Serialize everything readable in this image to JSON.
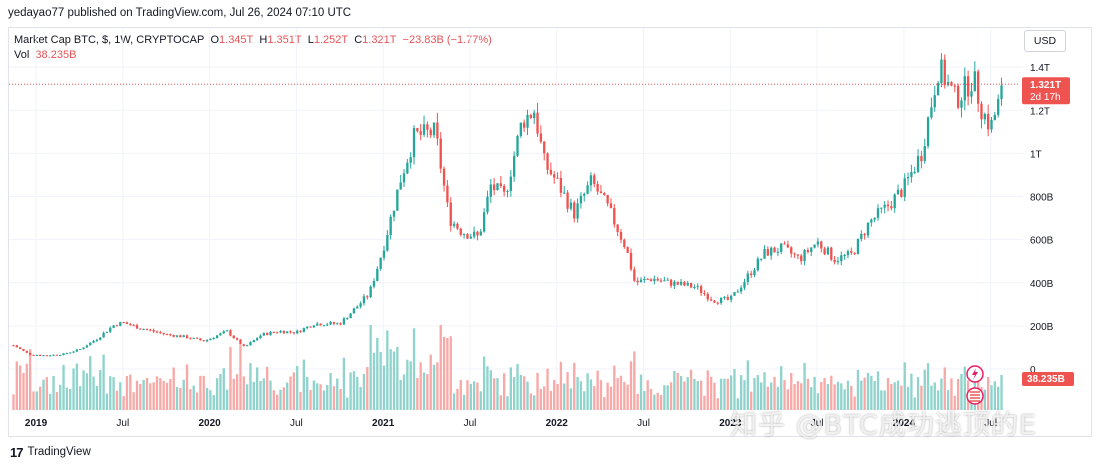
{
  "header": {
    "publisher": "yedayao77 published on TradingView.com, Jul 26, 2024 07:10 UTC"
  },
  "legend": {
    "symbol": "Market Cap BTC, $, 1W, CRYPTOCAP",
    "o_label": "O",
    "o": "1.345T",
    "h_label": "H",
    "h": "1.351T",
    "l_label": "L",
    "l": "1.252T",
    "c_label": "C",
    "c": "1.321T",
    "change": "−23.83B (−1.77%)",
    "vol_label": "Vol",
    "vol": "38.235B"
  },
  "currency_button": "USD",
  "price_badge": {
    "price": "1.321T",
    "countdown": "2d 17h"
  },
  "volume_badge": "38.235B",
  "footer": {
    "brand": "TradingView",
    "logo": "17"
  },
  "watermark": "知乎 @BTC成功逃顶的E",
  "colors": {
    "up": "#26a69a",
    "down": "#ef5350",
    "up_vol": "#8fd3cc",
    "down_vol": "#f7a9a7",
    "badge": "#ef5350"
  },
  "chart_data": {
    "type": "candlestick",
    "title": "Market Cap BTC, $, 1W, CRYPTOCAP",
    "interval": "1W",
    "currency": "USD",
    "y_ticks": [
      "1.4T",
      "1.2T",
      "1T",
      "800B",
      "600B",
      "400B",
      "200B",
      "0"
    ],
    "ylim_billions": [
      0,
      1460
    ],
    "x_ticks": [
      "2019",
      "Jul",
      "2020",
      "Jul",
      "2021",
      "Jul",
      "2022",
      "Jul",
      "2023",
      "Jul",
      "2024",
      "Jul"
    ],
    "x_tick_times": [
      2019.0,
      2019.5,
      2020.0,
      2020.5,
      2021.0,
      2021.5,
      2022.0,
      2022.5,
      2023.0,
      2023.5,
      2024.0,
      2024.5
    ],
    "xlim": [
      2018.85,
      2024.64
    ],
    "close_path_billions": [
      [
        2018.87,
        110
      ],
      [
        2018.96,
        68
      ],
      [
        2019.05,
        63
      ],
      [
        2019.15,
        68
      ],
      [
        2019.25,
        90
      ],
      [
        2019.35,
        140
      ],
      [
        2019.45,
        205
      ],
      [
        2019.5,
        215
      ],
      [
        2019.6,
        190
      ],
      [
        2019.75,
        160
      ],
      [
        2019.85,
        150
      ],
      [
        2019.97,
        130
      ],
      [
        2020.1,
        175
      ],
      [
        2020.2,
        100
      ],
      [
        2020.3,
        160
      ],
      [
        2020.4,
        175
      ],
      [
        2020.5,
        170
      ],
      [
        2020.6,
        210
      ],
      [
        2020.75,
        210
      ],
      [
        2020.85,
        290
      ],
      [
        2020.92,
        350
      ],
      [
        2021.0,
        560
      ],
      [
        2021.1,
        880
      ],
      [
        2021.18,
        1080
      ],
      [
        2021.3,
        1100
      ],
      [
        2021.38,
        700
      ],
      [
        2021.45,
        640
      ],
      [
        2021.55,
        610
      ],
      [
        2021.62,
        850
      ],
      [
        2021.7,
        800
      ],
      [
        2021.8,
        1150
      ],
      [
        2021.87,
        1200
      ],
      [
        2021.93,
        950
      ],
      [
        2022.0,
        870
      ],
      [
        2022.1,
        720
      ],
      [
        2022.2,
        870
      ],
      [
        2022.3,
        740
      ],
      [
        2022.4,
        560
      ],
      [
        2022.45,
        400
      ],
      [
        2022.55,
        420
      ],
      [
        2022.65,
        400
      ],
      [
        2022.8,
        380
      ],
      [
        2022.9,
        320
      ],
      [
        2023.0,
        320
      ],
      [
        2023.1,
        430
      ],
      [
        2023.2,
        540
      ],
      [
        2023.3,
        560
      ],
      [
        2023.4,
        510
      ],
      [
        2023.5,
        590
      ],
      [
        2023.6,
        510
      ],
      [
        2023.7,
        530
      ],
      [
        2023.8,
        680
      ],
      [
        2023.9,
        750
      ],
      [
        2024.0,
        840
      ],
      [
        2024.1,
        1000
      ],
      [
        2024.2,
        1400
      ],
      [
        2024.3,
        1250
      ],
      [
        2024.4,
        1350
      ],
      [
        2024.45,
        1200
      ],
      [
        2024.5,
        1120
      ],
      [
        2024.58,
        1321
      ]
    ],
    "volume_max_billions": 260,
    "last_volume_billions": 38.235
  }
}
